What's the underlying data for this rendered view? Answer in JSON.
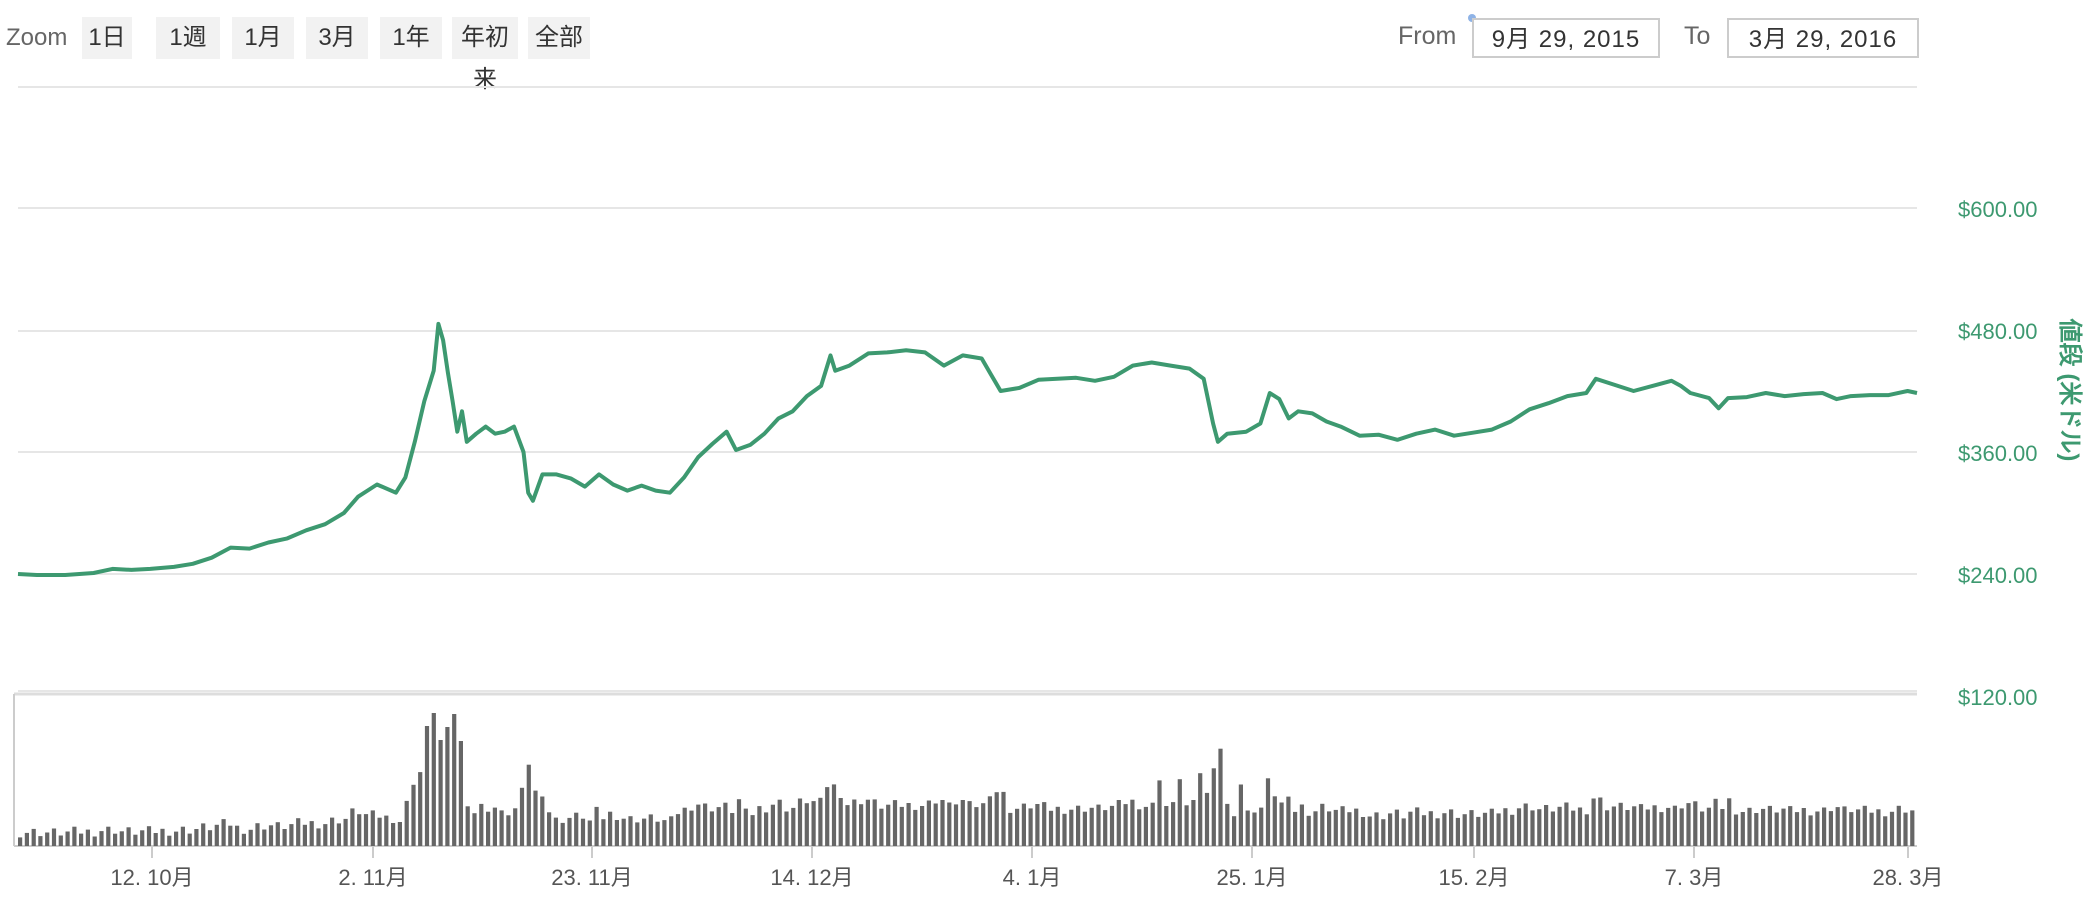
{
  "zoom": {
    "label": "Zoom",
    "buttons": [
      "1日",
      "1週",
      "1月",
      "3月",
      "1年",
      "年初来",
      "全部"
    ]
  },
  "range": {
    "from_label": "From",
    "from_value": "9月 29, 2015",
    "to_label": "To",
    "to_value": "3月 29, 2016"
  },
  "colors": {
    "price_line": "#3d9970",
    "volume": "#666666",
    "grid": "#e6e6e6",
    "axis_label": "#3d9970"
  },
  "chart_data": {
    "type": "line",
    "title": "",
    "xlabel": "",
    "ylabel": "値段 (米ドル)",
    "ylim": [
      120,
      720
    ],
    "y_ticks": [
      "$600.00",
      "$480.00",
      "$360.00",
      "$240.00",
      "$120.00"
    ],
    "x_ticks": [
      "12. 10月",
      "2. 11月",
      "23. 11月",
      "14. 12月",
      "4. 1月",
      "25. 1月",
      "15. 2月",
      "7. 3月",
      "28. 3月"
    ],
    "grid": true,
    "series": [
      {
        "values": [
          [
            0,
            240
          ],
          [
            4,
            239
          ],
          [
            10,
            239
          ],
          [
            16,
            241
          ],
          [
            20,
            245
          ],
          [
            24,
            244
          ],
          [
            28,
            245
          ],
          [
            33,
            247
          ],
          [
            37,
            250
          ],
          [
            41,
            256
          ],
          [
            45,
            266
          ],
          [
            49,
            265
          ],
          [
            53,
            271
          ],
          [
            57,
            275
          ],
          [
            61,
            283
          ],
          [
            65,
            289
          ],
          [
            69,
            300
          ],
          [
            72,
            316
          ],
          [
            76,
            328
          ],
          [
            80,
            320
          ],
          [
            82,
            335
          ],
          [
            84,
            370
          ],
          [
            86,
            410
          ],
          [
            88,
            440
          ],
          [
            89,
            486
          ],
          [
            90,
            470
          ],
          [
            91,
            438
          ],
          [
            92,
            410
          ],
          [
            93,
            380
          ],
          [
            94,
            400
          ],
          [
            95,
            370
          ],
          [
            97,
            378
          ],
          [
            99,
            385
          ],
          [
            101,
            378
          ],
          [
            103,
            380
          ],
          [
            105,
            385
          ],
          [
            107,
            360
          ],
          [
            108,
            320
          ],
          [
            109,
            312
          ],
          [
            111,
            338
          ],
          [
            114,
            338
          ],
          [
            117,
            334
          ],
          [
            120,
            326
          ],
          [
            123,
            338
          ],
          [
            126,
            328
          ],
          [
            129,
            322
          ],
          [
            132,
            327
          ],
          [
            135,
            322
          ],
          [
            138,
            320
          ],
          [
            141,
            335
          ],
          [
            144,
            355
          ],
          [
            147,
            368
          ],
          [
            150,
            380
          ],
          [
            152,
            362
          ],
          [
            155,
            367
          ],
          [
            158,
            378
          ],
          [
            161,
            393
          ],
          [
            164,
            400
          ],
          [
            167,
            415
          ],
          [
            170,
            425
          ],
          [
            172,
            455
          ],
          [
            173,
            440
          ],
          [
            176,
            445
          ],
          [
            180,
            457
          ],
          [
            184,
            458
          ],
          [
            188,
            460
          ],
          [
            192,
            458
          ],
          [
            196,
            445
          ],
          [
            200,
            455
          ],
          [
            204,
            452
          ],
          [
            206,
            436
          ],
          [
            208,
            420
          ],
          [
            212,
            423
          ],
          [
            216,
            431
          ],
          [
            220,
            432
          ],
          [
            224,
            433
          ],
          [
            228,
            430
          ],
          [
            232,
            434
          ],
          [
            236,
            445
          ],
          [
            240,
            448
          ],
          [
            244,
            445
          ],
          [
            248,
            442
          ],
          [
            251,
            432
          ],
          [
            253,
            388
          ],
          [
            254,
            370
          ],
          [
            256,
            378
          ],
          [
            260,
            380
          ],
          [
            263,
            388
          ],
          [
            265,
            418
          ],
          [
            267,
            412
          ],
          [
            269,
            393
          ],
          [
            271,
            400
          ],
          [
            274,
            398
          ],
          [
            277,
            390
          ],
          [
            280,
            385
          ],
          [
            284,
            376
          ],
          [
            288,
            377
          ],
          [
            292,
            372
          ],
          [
            296,
            378
          ],
          [
            300,
            382
          ],
          [
            304,
            376
          ],
          [
            308,
            379
          ],
          [
            312,
            382
          ],
          [
            316,
            390
          ],
          [
            320,
            402
          ],
          [
            324,
            408
          ],
          [
            328,
            415
          ],
          [
            332,
            418
          ],
          [
            334,
            432
          ],
          [
            338,
            426
          ],
          [
            342,
            420
          ],
          [
            346,
            425
          ],
          [
            350,
            430
          ],
          [
            352,
            425
          ],
          [
            354,
            418
          ],
          [
            358,
            413
          ],
          [
            360,
            403
          ],
          [
            362,
            413
          ],
          [
            366,
            414
          ],
          [
            370,
            418
          ],
          [
            374,
            415
          ],
          [
            378,
            417
          ],
          [
            382,
            418
          ],
          [
            385,
            412
          ],
          [
            388,
            415
          ],
          [
            392,
            416
          ],
          [
            396,
            416
          ],
          [
            400,
            420
          ],
          [
            402,
            418
          ]
        ]
      }
    ]
  }
}
